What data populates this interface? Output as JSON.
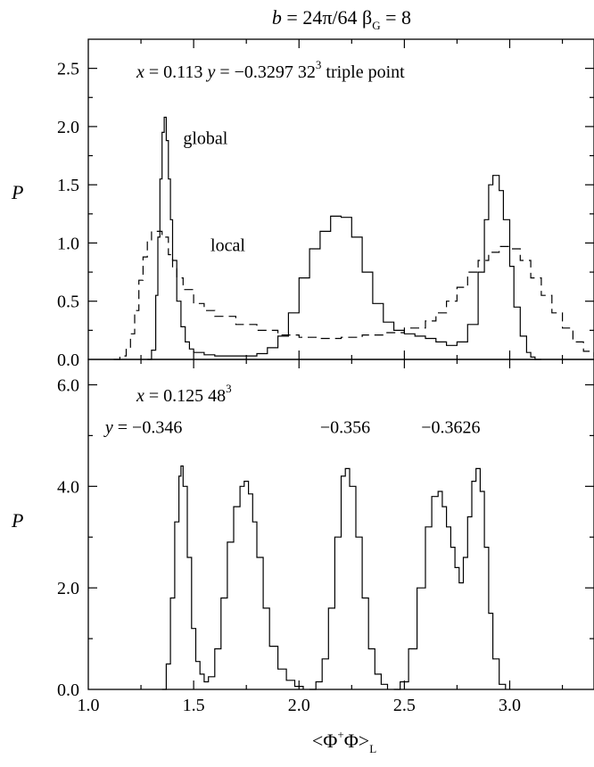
{
  "figure": {
    "title": {
      "lhs_var": "b",
      "rhs": " = 24π/64  β",
      "sub": "G",
      "tail": " = 8"
    },
    "xaxis_label": {
      "pre": "<Φ",
      "sup": "+",
      "post": "Φ>",
      "sub": "L"
    }
  },
  "chart_data": [
    {
      "type": "histogram",
      "panel": "top",
      "ylabel": "P",
      "xlim": [
        1.0,
        3.4
      ],
      "ylim": [
        0.0,
        2.75
      ],
      "xticks": [
        1.0,
        1.5,
        2.0,
        2.5,
        3.0
      ],
      "yticks": [
        0.0,
        0.5,
        1.0,
        1.5,
        2.0,
        2.5
      ],
      "ytick_labels": [
        "0.0",
        "0.5",
        "1.0",
        "1.5",
        "2.0",
        "2.5"
      ],
      "annotation": {
        "x_var": "x",
        "x_val": " = 0.113  ",
        "y_var": "y",
        "y_val": " = −0.3297  32",
        "sup": "3",
        "tail": "   triple point"
      },
      "series": [
        {
          "name": "global",
          "style": "solid",
          "x": [
            1.28,
            1.3,
            1.32,
            1.33,
            1.34,
            1.35,
            1.36,
            1.37,
            1.38,
            1.39,
            1.4,
            1.42,
            1.44,
            1.46,
            1.48,
            1.5,
            1.55,
            1.6,
            1.7,
            1.8,
            1.85,
            1.9,
            1.95,
            2.0,
            2.05,
            2.1,
            2.15,
            2.2,
            2.25,
            2.3,
            2.35,
            2.4,
            2.45,
            2.5,
            2.55,
            2.6,
            2.65,
            2.7,
            2.75,
            2.8,
            2.85,
            2.88,
            2.9,
            2.92,
            2.95,
            2.97,
            3.0,
            3.02,
            3.05,
            3.08,
            3.1,
            3.12,
            3.15
          ],
          "y": [
            0.0,
            0.08,
            0.55,
            1.05,
            1.55,
            1.95,
            2.08,
            1.88,
            1.55,
            1.2,
            0.85,
            0.5,
            0.28,
            0.15,
            0.09,
            0.06,
            0.04,
            0.03,
            0.03,
            0.05,
            0.1,
            0.2,
            0.4,
            0.7,
            0.95,
            1.1,
            1.23,
            1.22,
            1.05,
            0.75,
            0.48,
            0.32,
            0.25,
            0.22,
            0.2,
            0.18,
            0.15,
            0.12,
            0.15,
            0.3,
            0.75,
            1.2,
            1.5,
            1.58,
            1.45,
            1.2,
            0.8,
            0.45,
            0.2,
            0.06,
            0.02,
            0.0,
            0.0
          ]
        },
        {
          "name": "local",
          "style": "dashed",
          "x": [
            1.12,
            1.15,
            1.18,
            1.2,
            1.22,
            1.24,
            1.26,
            1.28,
            1.3,
            1.32,
            1.35,
            1.38,
            1.4,
            1.42,
            1.45,
            1.5,
            1.55,
            1.6,
            1.7,
            1.8,
            1.9,
            2.0,
            2.1,
            2.2,
            2.3,
            2.4,
            2.5,
            2.6,
            2.65,
            2.7,
            2.75,
            2.8,
            2.85,
            2.9,
            2.95,
            3.0,
            3.05,
            3.1,
            3.15,
            3.2,
            3.25,
            3.3,
            3.35,
            3.4
          ],
          "y": [
            0.0,
            0.03,
            0.1,
            0.22,
            0.42,
            0.68,
            0.88,
            1.02,
            1.1,
            1.1,
            1.05,
            0.9,
            0.78,
            0.7,
            0.6,
            0.48,
            0.42,
            0.37,
            0.3,
            0.25,
            0.21,
            0.19,
            0.18,
            0.19,
            0.21,
            0.23,
            0.27,
            0.33,
            0.4,
            0.5,
            0.62,
            0.75,
            0.85,
            0.92,
            0.97,
            0.95,
            0.85,
            0.7,
            0.55,
            0.4,
            0.27,
            0.15,
            0.07,
            0.02
          ]
        }
      ],
      "labels": [
        {
          "text": "global",
          "x": 1.45,
          "y": 1.85
        },
        {
          "text": "local",
          "x": 1.58,
          "y": 0.93
        }
      ]
    },
    {
      "type": "histogram",
      "panel": "bottom",
      "ylabel": "P",
      "xlim": [
        1.0,
        3.4
      ],
      "ylim": [
        0.0,
        6.5
      ],
      "xticks": [
        1.0,
        1.5,
        2.0,
        2.5,
        3.0
      ],
      "xtick_labels": [
        "1.0",
        "1.5",
        "2.0",
        "2.5",
        "3.0"
      ],
      "yticks": [
        0.0,
        2.0,
        4.0,
        6.0
      ],
      "ytick_labels": [
        "0.0",
        "2.0",
        "4.0",
        "6.0"
      ],
      "annotation": {
        "x_var": "x",
        "x_val": " = 0.125  48",
        "sup": "3"
      },
      "series": [
        {
          "name": "y = −0.346",
          "style": "solid",
          "x": [
            1.35,
            1.37,
            1.39,
            1.41,
            1.43,
            1.44,
            1.45,
            1.47,
            1.49,
            1.51,
            1.53,
            1.55,
            1.57,
            1.6,
            1.63,
            1.66,
            1.69,
            1.72,
            1.74,
            1.76,
            1.78,
            1.8,
            1.83,
            1.86,
            1.9,
            1.94,
            1.98,
            2.02
          ],
          "y": [
            0.0,
            0.5,
            1.8,
            3.3,
            4.2,
            4.4,
            4.0,
            2.6,
            1.2,
            0.55,
            0.3,
            0.15,
            0.25,
            0.8,
            1.8,
            2.9,
            3.6,
            4.0,
            4.1,
            3.85,
            3.3,
            2.6,
            1.6,
            0.85,
            0.4,
            0.18,
            0.06,
            0.0
          ]
        },
        {
          "name": "−0.356",
          "style": "solid",
          "x": [
            2.05,
            2.08,
            2.11,
            2.14,
            2.17,
            2.2,
            2.22,
            2.24,
            2.27,
            2.3,
            2.33,
            2.36,
            2.39,
            2.42
          ],
          "y": [
            0.0,
            0.15,
            0.6,
            1.6,
            3.0,
            4.2,
            4.35,
            4.0,
            3.0,
            1.8,
            0.8,
            0.3,
            0.1,
            0.0
          ]
        },
        {
          "name": "−0.3626",
          "style": "solid",
          "x": [
            2.45,
            2.48,
            2.52,
            2.56,
            2.6,
            2.63,
            2.66,
            2.68,
            2.7,
            2.72,
            2.74,
            2.76,
            2.78,
            2.8,
            2.82,
            2.84,
            2.86,
            2.88,
            2.9,
            2.92,
            2.95,
            2.98
          ],
          "y": [
            0.0,
            0.15,
            0.8,
            2.0,
            3.2,
            3.8,
            3.9,
            3.6,
            3.2,
            2.8,
            2.4,
            2.1,
            2.6,
            3.4,
            4.1,
            4.35,
            3.9,
            2.8,
            1.5,
            0.6,
            0.1,
            0.0
          ]
        }
      ],
      "labels": [
        {
          "text_var": "y",
          "text": " = −0.346",
          "x": 1.08,
          "y": 5.05,
          "italic_prefix": true
        },
        {
          "text": "−0.356",
          "x": 2.1,
          "y": 5.05
        },
        {
          "text": "−0.3626",
          "x": 2.58,
          "y": 5.05
        }
      ]
    }
  ]
}
